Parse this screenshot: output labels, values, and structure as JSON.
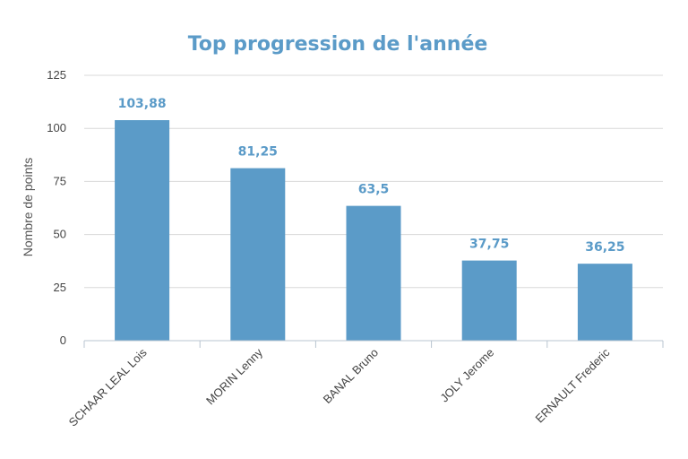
{
  "chart_data": {
    "type": "bar",
    "title": "Top progression de l'année",
    "ylabel": "Nombre de points",
    "xlabel": "",
    "categories": [
      "SCHAAR LEAL Lois",
      "MORIN Lenny",
      "BANAL Bruno",
      "JOLY Jerome",
      "ERNAULT Frederic"
    ],
    "values": [
      103.88,
      81.25,
      63.5,
      37.75,
      36.25
    ],
    "value_labels": [
      "103,88",
      "81,25",
      "63,5",
      "37,75",
      "36,25"
    ],
    "ylim": [
      0,
      125
    ],
    "yticks": [
      "0",
      "25",
      "50",
      "75",
      "100",
      "125"
    ],
    "grid": true,
    "legend": "none",
    "colors": {
      "bar": "#5b9bc8",
      "title": "#5b9bc8",
      "grid": "#d8d8d8"
    }
  }
}
